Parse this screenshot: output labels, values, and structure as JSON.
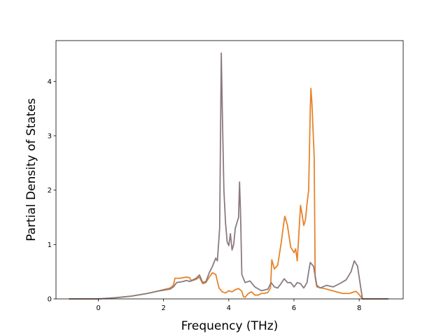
{
  "chart_data": {
    "type": "line",
    "title": "",
    "xlabel": "Frequency (THz)",
    "ylabel": "Partial Density of States",
    "xlim": [
      -1.3,
      9.35
    ],
    "ylim": [
      0,
      4.75
    ],
    "xticks": [
      0,
      2,
      4,
      6,
      8
    ],
    "yticks": [
      0,
      1,
      2,
      3,
      4
    ],
    "grid": false,
    "legend": "none",
    "series": [
      {
        "color": "#e6832a",
        "points": [
          [
            -0.9,
            0
          ],
          [
            0.0,
            0.0
          ],
          [
            0.5,
            0.02
          ],
          [
            1.0,
            0.05
          ],
          [
            1.5,
            0.1
          ],
          [
            1.8,
            0.14
          ],
          [
            2.0,
            0.17
          ],
          [
            2.2,
            0.2
          ],
          [
            2.3,
            0.25
          ],
          [
            2.35,
            0.38
          ],
          [
            2.5,
            0.38
          ],
          [
            2.7,
            0.4
          ],
          [
            2.8,
            0.39
          ],
          [
            2.85,
            0.33
          ],
          [
            3.0,
            0.36
          ],
          [
            3.1,
            0.4
          ],
          [
            3.2,
            0.28
          ],
          [
            3.3,
            0.3
          ],
          [
            3.4,
            0.4
          ],
          [
            3.5,
            0.48
          ],
          [
            3.6,
            0.45
          ],
          [
            3.7,
            0.2
          ],
          [
            3.8,
            0.13
          ],
          [
            3.9,
            0.11
          ],
          [
            4.0,
            0.15
          ],
          [
            4.1,
            0.13
          ],
          [
            4.2,
            0.17
          ],
          [
            4.3,
            0.19
          ],
          [
            4.4,
            0.14
          ],
          [
            4.45,
            0.04
          ],
          [
            4.5,
            0.03
          ],
          [
            4.6,
            0.1
          ],
          [
            4.7,
            0.13
          ],
          [
            4.8,
            0.07
          ],
          [
            4.9,
            0.07
          ],
          [
            5.0,
            0.1
          ],
          [
            5.1,
            0.1
          ],
          [
            5.2,
            0.12
          ],
          [
            5.28,
            0.2
          ],
          [
            5.32,
            0.72
          ],
          [
            5.4,
            0.55
          ],
          [
            5.5,
            0.62
          ],
          [
            5.6,
            1.0
          ],
          [
            5.7,
            1.45
          ],
          [
            5.72,
            1.52
          ],
          [
            5.8,
            1.35
          ],
          [
            5.9,
            0.95
          ],
          [
            6.0,
            0.85
          ],
          [
            6.05,
            0.92
          ],
          [
            6.1,
            0.7
          ],
          [
            6.15,
            1.2
          ],
          [
            6.2,
            1.72
          ],
          [
            6.25,
            1.55
          ],
          [
            6.3,
            1.35
          ],
          [
            6.35,
            1.45
          ],
          [
            6.4,
            1.75
          ],
          [
            6.45,
            2.0
          ],
          [
            6.5,
            3.5
          ],
          [
            6.52,
            3.87
          ],
          [
            6.55,
            3.6
          ],
          [
            6.62,
            2.6
          ],
          [
            6.65,
            0.4
          ],
          [
            6.7,
            0.22
          ],
          [
            7.0,
            0.18
          ],
          [
            7.3,
            0.13
          ],
          [
            7.5,
            0.1
          ],
          [
            7.7,
            0.1
          ],
          [
            7.9,
            0.14
          ],
          [
            8.0,
            0.08
          ],
          [
            8.1,
            0.0
          ],
          [
            8.9,
            0
          ]
        ]
      },
      {
        "color": "#8b7a80",
        "points": [
          [
            -0.9,
            0
          ],
          [
            0.0,
            0.0
          ],
          [
            0.5,
            0.02
          ],
          [
            1.0,
            0.05
          ],
          [
            1.5,
            0.1
          ],
          [
            1.8,
            0.14
          ],
          [
            2.0,
            0.16
          ],
          [
            2.2,
            0.18
          ],
          [
            2.3,
            0.22
          ],
          [
            2.4,
            0.3
          ],
          [
            2.6,
            0.32
          ],
          [
            2.7,
            0.34
          ],
          [
            2.8,
            0.32
          ],
          [
            3.0,
            0.38
          ],
          [
            3.1,
            0.44
          ],
          [
            3.2,
            0.3
          ],
          [
            3.3,
            0.32
          ],
          [
            3.4,
            0.48
          ],
          [
            3.5,
            0.6
          ],
          [
            3.6,
            0.75
          ],
          [
            3.65,
            0.7
          ],
          [
            3.72,
            1.3
          ],
          [
            3.77,
            4.52
          ],
          [
            3.8,
            3.5
          ],
          [
            3.85,
            2.0
          ],
          [
            3.9,
            1.4
          ],
          [
            3.95,
            1.05
          ],
          [
            4.0,
            0.98
          ],
          [
            4.05,
            1.2
          ],
          [
            4.1,
            0.9
          ],
          [
            4.15,
            1.0
          ],
          [
            4.2,
            1.3
          ],
          [
            4.3,
            1.5
          ],
          [
            4.33,
            2.15
          ],
          [
            4.36,
            1.6
          ],
          [
            4.4,
            0.45
          ],
          [
            4.5,
            0.3
          ],
          [
            4.65,
            0.33
          ],
          [
            4.8,
            0.22
          ],
          [
            5.0,
            0.15
          ],
          [
            5.2,
            0.18
          ],
          [
            5.3,
            0.3
          ],
          [
            5.4,
            0.22
          ],
          [
            5.5,
            0.2
          ],
          [
            5.6,
            0.28
          ],
          [
            5.7,
            0.37
          ],
          [
            5.8,
            0.3
          ],
          [
            5.9,
            0.3
          ],
          [
            6.0,
            0.22
          ],
          [
            6.1,
            0.3
          ],
          [
            6.2,
            0.28
          ],
          [
            6.3,
            0.2
          ],
          [
            6.4,
            0.3
          ],
          [
            6.45,
            0.5
          ],
          [
            6.5,
            0.67
          ],
          [
            6.6,
            0.6
          ],
          [
            6.7,
            0.25
          ],
          [
            6.8,
            0.2
          ],
          [
            7.0,
            0.25
          ],
          [
            7.2,
            0.22
          ],
          [
            7.4,
            0.28
          ],
          [
            7.6,
            0.35
          ],
          [
            7.75,
            0.5
          ],
          [
            7.85,
            0.7
          ],
          [
            7.95,
            0.6
          ],
          [
            8.05,
            0.2
          ],
          [
            8.1,
            0.0
          ],
          [
            8.9,
            0
          ]
        ]
      }
    ]
  }
}
